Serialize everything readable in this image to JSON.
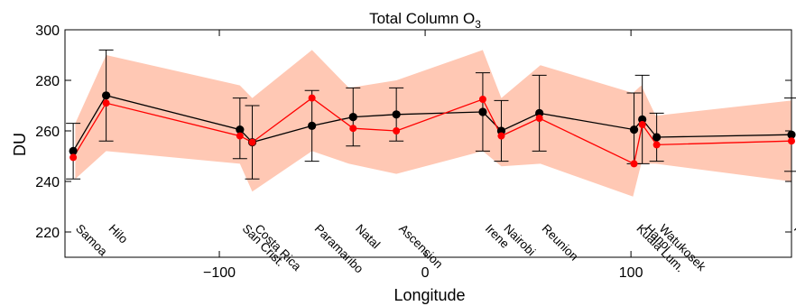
{
  "chart_data": {
    "type": "line",
    "title": "Total Column O",
    "title_subscript": "3",
    "xlabel": "Longitude",
    "ylabel": "DU",
    "xlim": [
      -175,
      178
    ],
    "ylim": [
      210,
      300
    ],
    "xticks": [
      -100,
      0,
      100
    ],
    "xtick_labels": [
      "−100",
      "0",
      "100"
    ],
    "yticks": [
      220,
      240,
      260,
      280,
      300
    ],
    "grid": false,
    "colors": {
      "band": "#ffc8b4",
      "black_series": "#000000",
      "red_series": "#ff0000"
    },
    "band": {
      "x": [
        -170,
        -155,
        -90,
        -84,
        -55,
        -37,
        -14,
        28,
        37,
        56,
        101,
        105,
        112,
        178
      ],
      "upper": [
        263,
        290,
        278,
        273,
        292,
        277,
        280,
        292,
        273,
        286,
        275,
        278,
        266,
        272
      ],
      "lower": [
        241,
        252,
        247,
        236,
        252,
        247,
        243,
        252,
        246,
        247,
        234,
        247,
        247,
        240
      ]
    },
    "sites": [
      {
        "name": "Samoa",
        "lon": -171,
        "black": 252,
        "red": 249.5,
        "err_low": 241,
        "err_high": 263
      },
      {
        "name": "Hilo",
        "lon": -155,
        "black": 274,
        "red": 271,
        "err_low": 256,
        "err_high": 292
      },
      {
        "name": "San Crist.",
        "lon": -90,
        "black": 260.5,
        "red": 258,
        "err_low": 249,
        "err_high": 273
      },
      {
        "name": "Costa Rica",
        "lon": -84,
        "black": 255.5,
        "red": 255.5,
        "err_low": 241,
        "err_high": 270
      },
      {
        "name": "Paramaribo",
        "lon": -55,
        "black": 262,
        "red": 273,
        "err_low": 248,
        "err_high": 276
      },
      {
        "name": "Natal",
        "lon": -35,
        "black": 265.5,
        "red": 261,
        "err_low": 254,
        "err_high": 277
      },
      {
        "name": "Ascension",
        "lon": -14,
        "black": 266.5,
        "red": 260,
        "err_low": 256,
        "err_high": 277
      },
      {
        "name": "Irene",
        "lon": 28,
        "black": 267.5,
        "red": 272.5,
        "err_low": 252,
        "err_high": 283
      },
      {
        "name": "Nairobi",
        "lon": 37,
        "black": 260,
        "red": 258,
        "err_low": 248,
        "err_high": 272
      },
      {
        "name": "Reunion",
        "lon": 55.5,
        "black": 267,
        "red": 265,
        "err_low": 252,
        "err_high": 282
      },
      {
        "name": "Kuala Lum.",
        "lon": 101.5,
        "black": 260.5,
        "red": 247,
        "err_low": 247,
        "err_high": 275
      },
      {
        "name": "Hanoi",
        "lon": 105.5,
        "black": 264.5,
        "red": 262.5,
        "err_low": 247,
        "err_high": 282
      },
      {
        "name": "Watukosek",
        "lon": 112.5,
        "black": 257.5,
        "red": 254.5,
        "err_low": 248,
        "err_high": 267
      },
      {
        "name": "Fiji",
        "lon": 178,
        "black": 258.5,
        "red": 256,
        "err_low": 244,
        "err_high": 273
      }
    ]
  }
}
